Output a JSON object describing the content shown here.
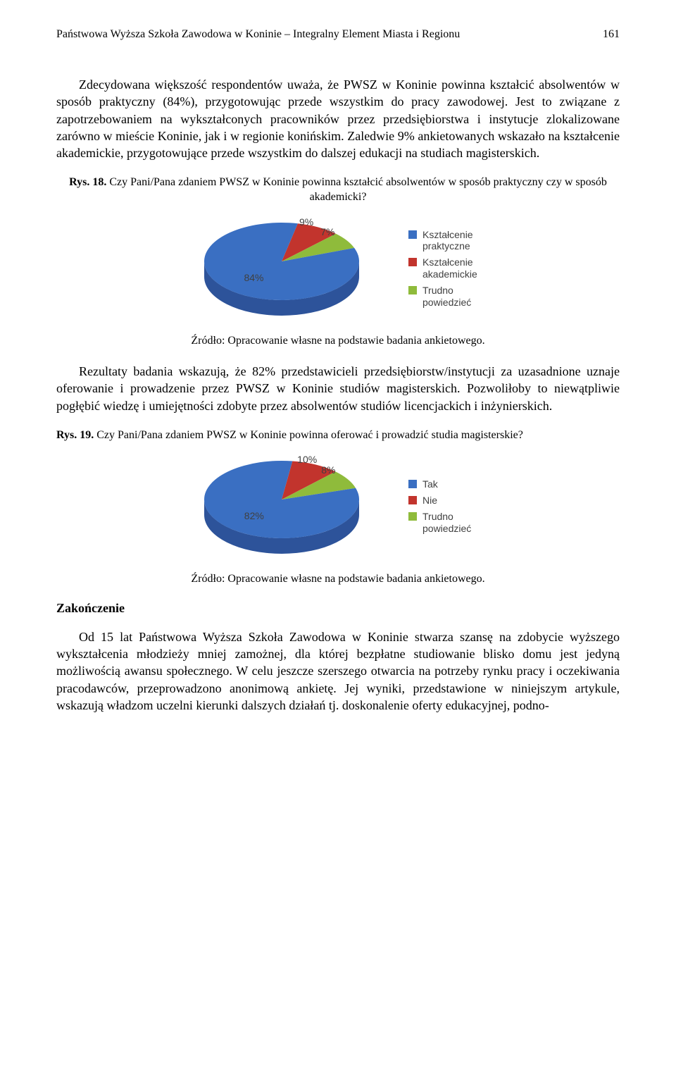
{
  "header": {
    "running_title": "Państwowa Wyższa Szkoła Zawodowa w Koninie – Integralny Element Miasta i Regionu",
    "page_number": "161"
  },
  "para1": "Zdecydowana większość respondentów uważa, że PWSZ w Koninie powinna kształcić absolwentów w sposób praktyczny (84%), przygotowując przede wszystkim do pracy zawodowej. Jest to związane z zapotrzebowaniem na wykształconych pracowników przez przedsiębiorstwa i instytucje zlokalizowane zarówno w mieście Koninie, jak i w regionie konińskim. Zaledwie 9% ankietowanych wskazało na kształcenie akademickie, przygotowujące przede wszystkim do dalszej edukacji na studiach magisterskich.",
  "fig18": {
    "label": "Rys. 18.",
    "title": "Czy Pani/Pana zdaniem PWSZ w Koninie powinna kształcić absolwentów w sposób praktyczny czy w sposób akademicki?",
    "chart": {
      "type": "pie-3d",
      "background_color": "#ffffff",
      "slices": [
        {
          "label": "Kształcenie praktyczne",
          "value": 84,
          "pct_label": "84%",
          "color": "#3a6fc2",
          "side_color": "#2d539a"
        },
        {
          "label": "Kształcenie akademickie",
          "value": 9,
          "pct_label": "9%",
          "color": "#c2342d",
          "side_color": "#8f231e"
        },
        {
          "label": "Trudno powiedzieć",
          "value": 7,
          "pct_label": "7%",
          "color": "#8fbb3b",
          "side_color": "#6c8e2c"
        }
      ],
      "legend_colors": [
        "#3a6fc2",
        "#c2342d",
        "#8fbb3b"
      ],
      "legend_labels": [
        "Kształcenie praktyczne",
        "Kształcenie akademickie",
        "Trudno powiedzieć"
      ],
      "data_label_fontsize": 14,
      "data_label_color": "#404040"
    },
    "source": "Źródło: Opracowanie własne na podstawie badania ankietowego."
  },
  "para2": "Rezultaty badania wskazują, że 82% przedstawicieli przedsiębiorstw/instytucji za uzasadnione uznaje oferowanie i prowadzenie przez PWSZ w Koninie studiów magisterskich. Pozwoliłoby to niewątpliwie pogłębić wiedzę i umiejętności zdobyte przez absolwentów studiów licencjackich i inżynierskich.",
  "fig19": {
    "label": "Rys. 19.",
    "title": "Czy Pani/Pana zdaniem PWSZ w Koninie powinna oferować i prowadzić studia magisterskie?",
    "chart": {
      "type": "pie-3d",
      "background_color": "#ffffff",
      "slices": [
        {
          "label": "Tak",
          "value": 82,
          "pct_label": "82%",
          "color": "#3a6fc2",
          "side_color": "#2d539a"
        },
        {
          "label": "Nie",
          "value": 10,
          "pct_label": "10%",
          "color": "#c2342d",
          "side_color": "#8f231e"
        },
        {
          "label": "Trudno powiedzieć",
          "value": 8,
          "pct_label": "8%",
          "color": "#8fbb3b",
          "side_color": "#6c8e2c"
        }
      ],
      "legend_colors": [
        "#3a6fc2",
        "#c2342d",
        "#8fbb3b"
      ],
      "legend_labels": [
        "Tak",
        "Nie",
        "Trudno powiedzieć"
      ],
      "data_label_fontsize": 14,
      "data_label_color": "#404040"
    },
    "source": "Źródło: Opracowanie własne na podstawie badania ankietowego."
  },
  "section_end": "Zakończenie",
  "para3": "Od 15 lat Państwowa Wyższa Szkoła Zawodowa w Koninie stwarza szansę na zdobycie wyższego wykształcenia młodzieży mniej zamożnej, dla której bezpłatne studiowanie blisko domu jest jedyną możliwością awansu społecznego. W celu jeszcze szerszego otwarcia na potrzeby rynku pracy i oczekiwania pracodawców, przeprowadzono anonimową ankietę. Jej wyniki, przedstawione w niniejszym artykule, wskazują władzom uczelni kierunki dalszych działań tj. doskonalenie oferty edukacyjnej, podno-"
}
